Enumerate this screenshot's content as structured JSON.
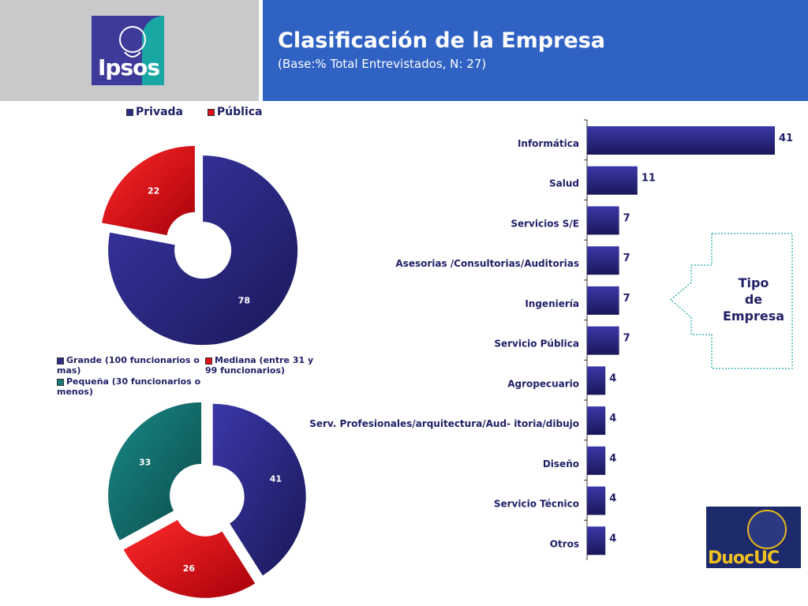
{
  "header": {
    "title": "Clasificación de la Empresa",
    "subtitle": "(Base:% Total Entrevistados, N: 27)"
  },
  "logos": {
    "ipsos": "Ipsos",
    "duoc": "DuocUC"
  },
  "callout": {
    "line1": "Tipo",
    "line2": "de",
    "line3": "Empresa"
  },
  "chart_data": [
    {
      "type": "pie",
      "variant": "donut",
      "legend": [
        "Privada",
        "Pública"
      ],
      "slices": [
        {
          "name": "Privada",
          "value": 78,
          "color": "#2e2c8a"
        },
        {
          "name": "Pública",
          "value": 22,
          "color": "#e0101a"
        }
      ]
    },
    {
      "type": "pie",
      "variant": "donut",
      "legend": [
        "Grande (100 funcionarios o mas)",
        "Mediana (entre 31 y 99 funcionarios)",
        "Pequeña (30 funcionarios o menos)"
      ],
      "slices": [
        {
          "name": "Grande (100 funcionarios o mas)",
          "value": 41,
          "color": "#2e2c8a"
        },
        {
          "name": "Mediana (entre 31 y 99 funcionarios)",
          "value": 26,
          "color": "#e0101a"
        },
        {
          "name": "Pequeña (30 funcionarios o menos)",
          "value": 33,
          "color": "#137a78"
        }
      ]
    },
    {
      "type": "bar",
      "orientation": "horizontal",
      "categories": [
        "Informática",
        "Salud",
        "Servicios S/E",
        "Asesorias /Consultorias/Auditorias",
        "Ingeniería",
        "Servicio Pública",
        "Agropecuario",
        "Serv. Profesionales/arquitectura/Aud- itoria/dibujo",
        "Diseño",
        "Servicio Técnico",
        "Otros"
      ],
      "values": [
        41,
        11,
        7,
        7,
        7,
        7,
        4,
        4,
        4,
        4,
        4
      ],
      "xlim": [
        0,
        41
      ],
      "color": "#2e2c8a"
    }
  ]
}
